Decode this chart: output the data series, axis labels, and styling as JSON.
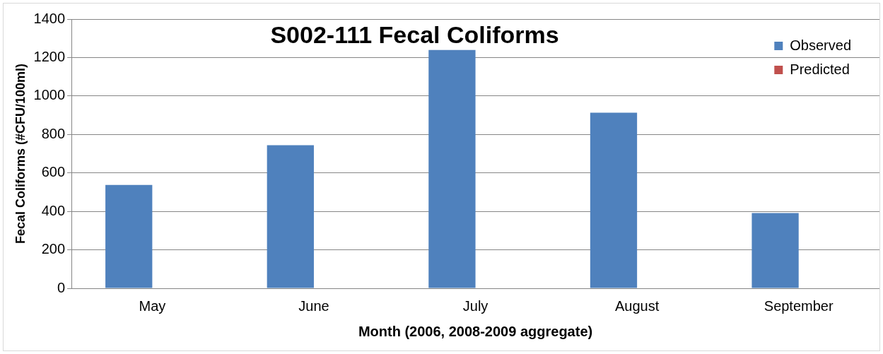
{
  "chart_data": {
    "type": "bar",
    "title": "S002-111 Fecal Coliforms",
    "xlabel": "Month (2006, 2008-2009 aggregate)",
    "ylabel": "Fecal Coliforms (#CFU/100ml)",
    "categories": [
      "May",
      "June",
      "July",
      "August",
      "September"
    ],
    "series": [
      {
        "name": "Observed",
        "color": "#4f81bd",
        "values": [
          537,
          744,
          1239,
          913,
          391
        ]
      },
      {
        "name": "Predicted",
        "color": "#c0504d",
        "values": [
          null,
          null,
          null,
          null,
          null
        ]
      }
    ],
    "ylim": [
      0,
      1400
    ],
    "yticks": [
      0,
      200,
      400,
      600,
      800,
      1000,
      1200,
      1400
    ],
    "grid": "y",
    "legend": "top right"
  }
}
